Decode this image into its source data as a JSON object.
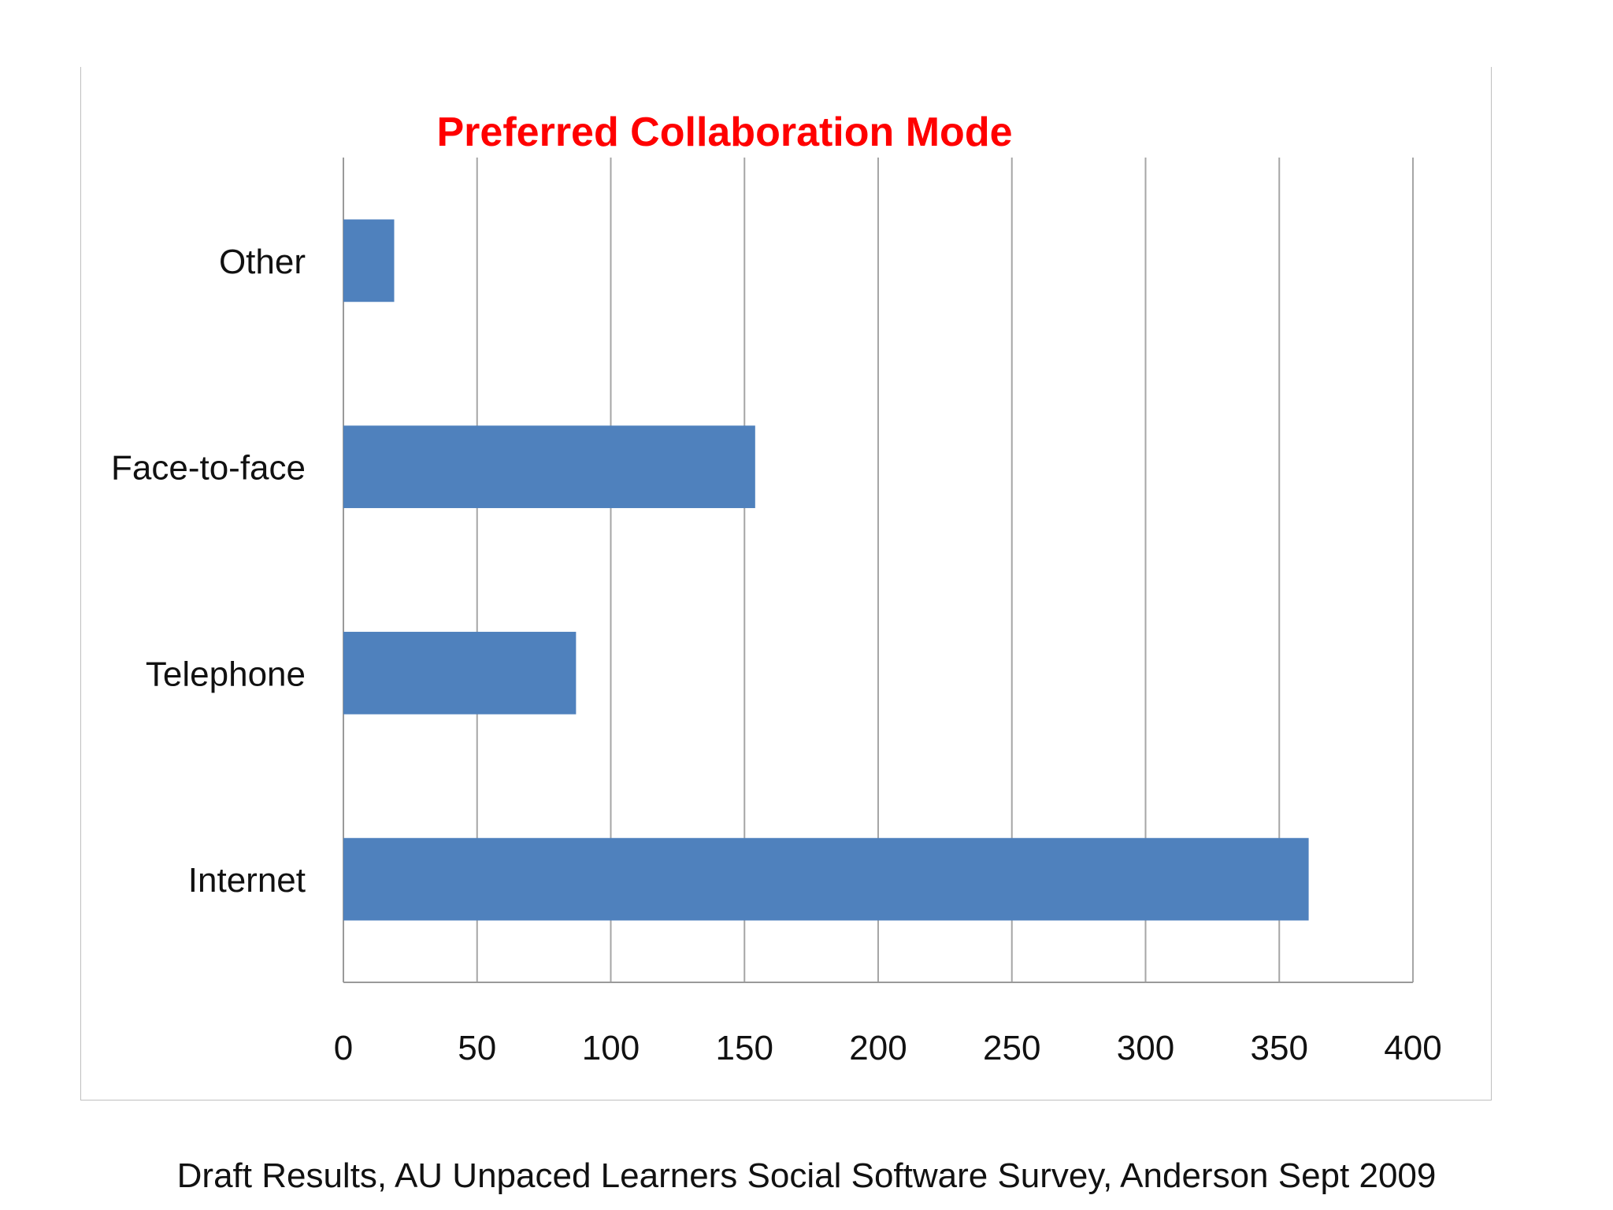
{
  "chart_data": {
    "type": "bar",
    "orientation": "horizontal",
    "title": "Preferred Collaboration Mode",
    "categories": [
      "Internet",
      "Telephone",
      "Face-to-face",
      "Other"
    ],
    "values": [
      361,
      87,
      154,
      19
    ],
    "xlim": [
      0,
      400
    ],
    "xticks": [
      0,
      50,
      100,
      150,
      200,
      250,
      300,
      350,
      400
    ],
    "xlabel": "",
    "ylabel": "",
    "grid": "vertical",
    "legend": "none",
    "bar_color": "#4f81bd",
    "title_color": "#ff0000"
  },
  "caption": "Draft Results, AU Unpaced Learners Social Software Survey, Anderson Sept 2009"
}
